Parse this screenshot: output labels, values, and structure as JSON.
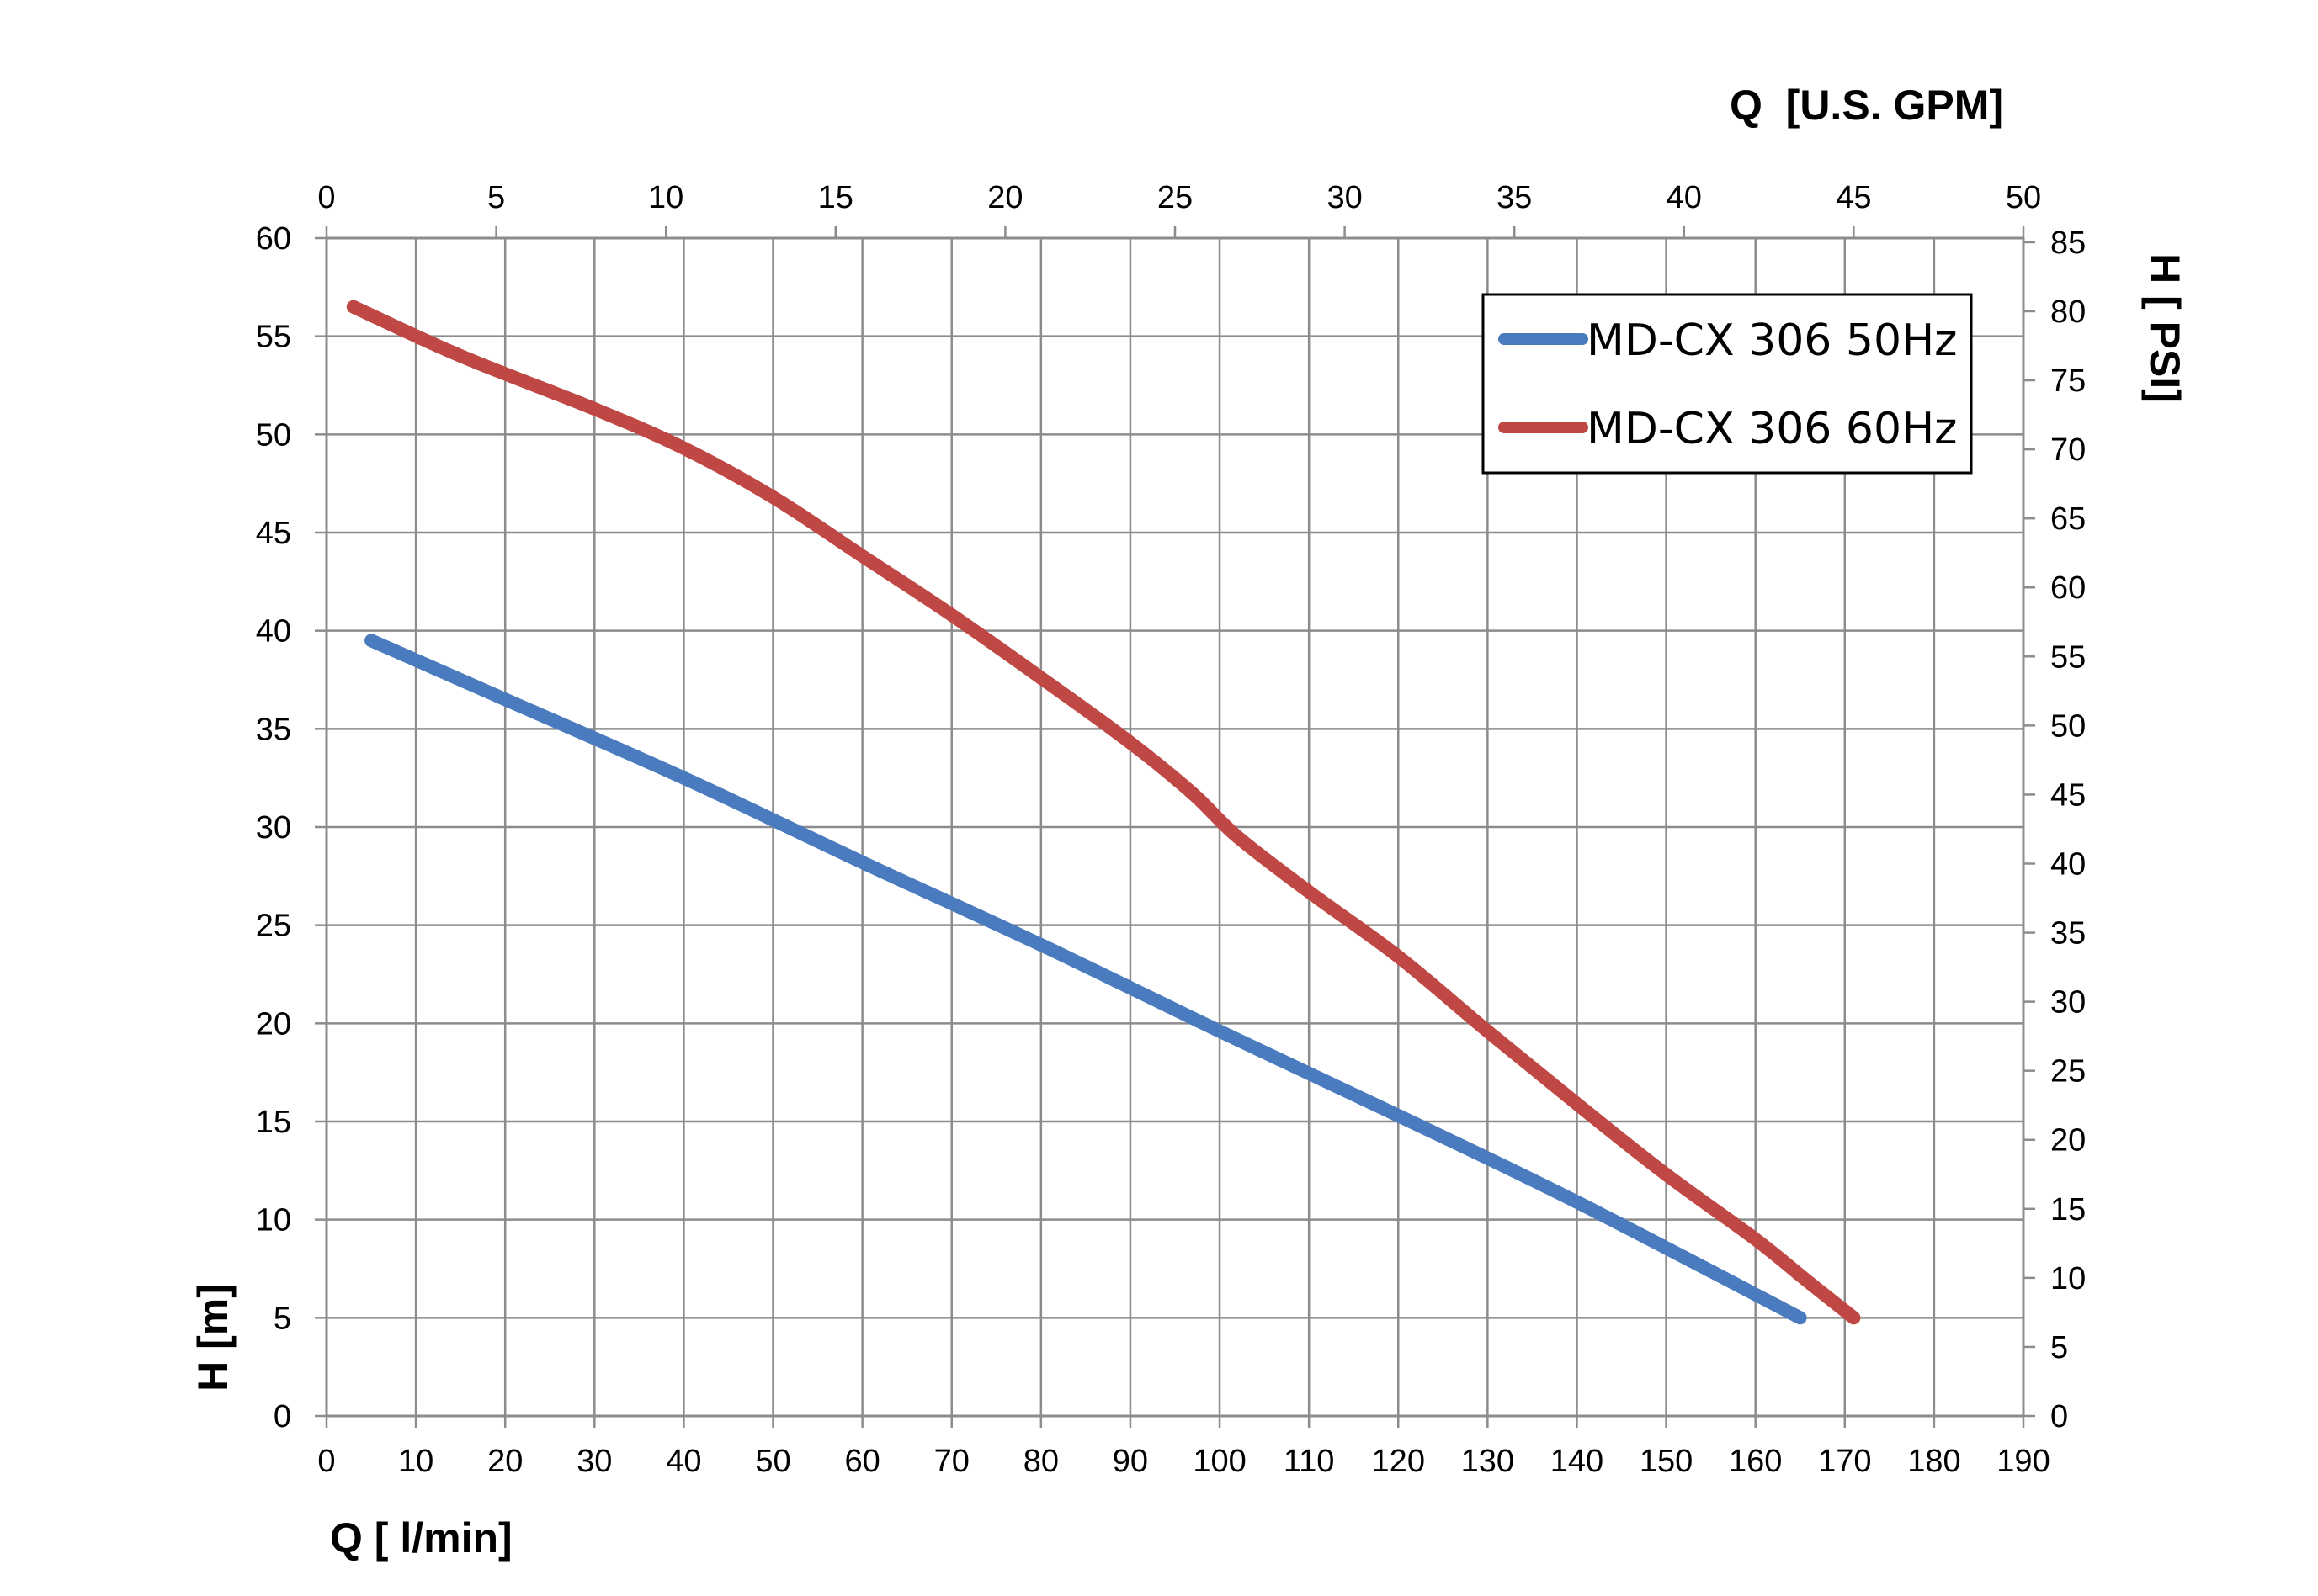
{
  "chart_data": {
    "type": "line",
    "x_bottom": {
      "label": "Q [ l/min]",
      "range": [
        0,
        190
      ],
      "ticks": [
        0,
        10,
        20,
        30,
        40,
        50,
        60,
        70,
        80,
        90,
        100,
        110,
        120,
        130,
        140,
        150,
        160,
        170,
        180,
        190
      ]
    },
    "x_top": {
      "label": "Q  [U.S. GPM]",
      "range": [
        0,
        50
      ],
      "ticks": [
        0,
        5,
        10,
        15,
        20,
        25,
        30,
        35,
        40,
        45,
        50
      ]
    },
    "y_left": {
      "label": "H [m]",
      "range": [
        0,
        60
      ],
      "ticks": [
        0,
        5,
        10,
        15,
        20,
        25,
        30,
        35,
        40,
        45,
        50,
        55,
        60
      ]
    },
    "y_right": {
      "label": "H [ PSI]",
      "range": [
        0,
        85.3
      ],
      "ticks": [
        0,
        5,
        10,
        15,
        20,
        25,
        30,
        35,
        40,
        45,
        50,
        55,
        60,
        65,
        70,
        75,
        80,
        85
      ]
    },
    "grid": true,
    "legend_position": "top-right",
    "series": [
      {
        "name": "MD-CX 306 50Hz",
        "color": "#4a7bbf",
        "x": [
          5,
          20,
          40,
          60,
          80,
          100,
          120,
          140,
          165
        ],
        "y": [
          39.5,
          36.5,
          32.5,
          28.2,
          24,
          19.6,
          15.3,
          10.9,
          5
        ]
      },
      {
        "name": "MD-CX 306 60Hz",
        "color": "#bf4744",
        "x": [
          3,
          15,
          30,
          40,
          50,
          60,
          70,
          80,
          90,
          97,
          102,
          110,
          120,
          130,
          140,
          150,
          160,
          166,
          171
        ],
        "y": [
          56.5,
          54,
          51.3,
          49.3,
          46.8,
          43.8,
          40.8,
          37.6,
          34.3,
          31.7,
          29.5,
          26.7,
          23.4,
          19.6,
          15.9,
          12.3,
          9,
          6.8,
          5
        ]
      }
    ]
  }
}
